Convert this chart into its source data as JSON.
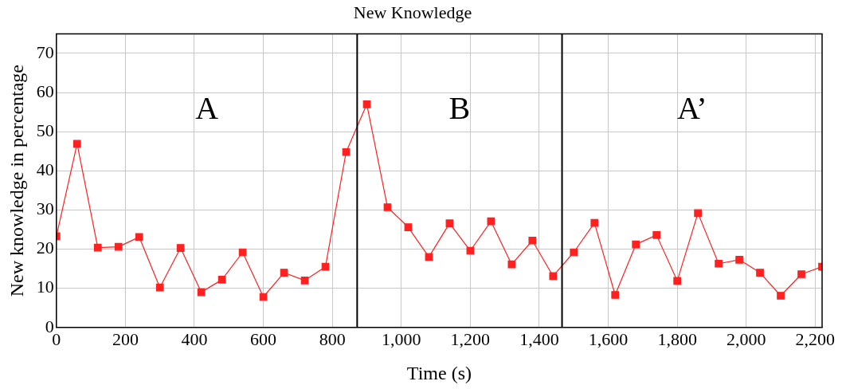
{
  "chart_data": {
    "type": "line",
    "title": "New Knowledge",
    "xlabel": "Time (s)",
    "ylabel": "New knowledge in percentage",
    "x": [
      0,
      60,
      120,
      180,
      240,
      300,
      360,
      420,
      480,
      540,
      600,
      660,
      720,
      780,
      840,
      900,
      960,
      1020,
      1080,
      1140,
      1200,
      1260,
      1320,
      1380,
      1440,
      1500,
      1560,
      1620,
      1680,
      1740,
      1800,
      1860,
      1920,
      1980,
      2040,
      2100,
      2160,
      2220
    ],
    "series": [
      {
        "color": "#ff2020",
        "values": [
          23.3,
          46.9,
          20.4,
          20.6,
          23.1,
          10.2,
          20.3,
          9.0,
          12.2,
          19.2,
          7.8,
          14.0,
          12.0,
          15.5,
          44.8,
          57.0,
          30.7,
          25.6,
          18.0,
          26.6,
          19.6,
          27.1,
          16.1,
          22.2,
          13.1,
          19.2,
          26.7,
          8.3,
          21.2,
          23.6,
          11.9,
          29.2,
          16.3,
          17.3,
          14.0,
          8.1,
          13.6,
          15.5
        ]
      }
    ],
    "xlim": [
      0,
      2220
    ],
    "ylim": [
      0,
      75
    ],
    "xticks": [
      0,
      200,
      400,
      600,
      800,
      {
        "value": 1000,
        "label": "1,000"
      },
      {
        "value": 1200,
        "label": "1,200"
      },
      {
        "value": 1400,
        "label": "1,400"
      },
      {
        "value": 1600,
        "label": "1,600"
      },
      {
        "value": 1800,
        "label": "1,800"
      },
      {
        "value": 2000,
        "label": "2,000"
      },
      {
        "value": 2200,
        "label": "2,200"
      }
    ],
    "yticks": [
      0,
      10,
      20,
      30,
      40,
      50,
      60,
      70
    ],
    "ref_lines": [
      {
        "axis": "x",
        "value": 872,
        "color": "#000000"
      },
      {
        "axis": "x",
        "value": 1466,
        "color": "#000000"
      }
    ],
    "annotations": [
      "A",
      "B",
      "A’"
    ],
    "grid": true,
    "legend": false,
    "marker": "square",
    "line_style": "solid"
  }
}
